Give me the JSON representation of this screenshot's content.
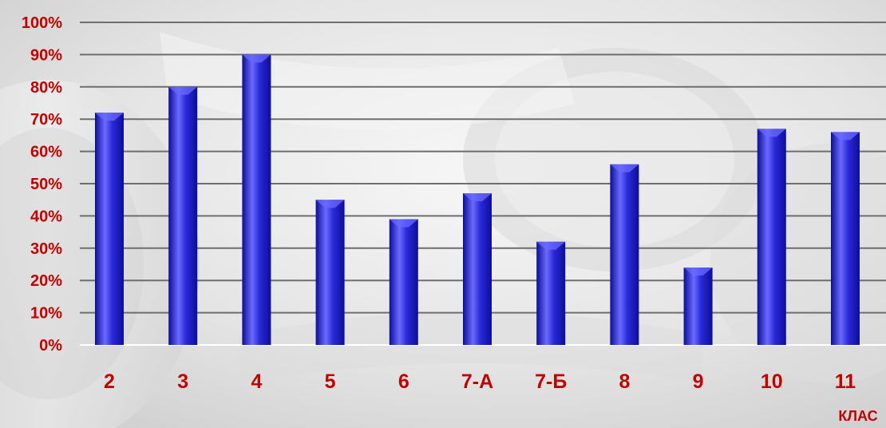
{
  "chart_data": {
    "type": "bar",
    "categories": [
      "2",
      "3",
      "4",
      "5",
      "6",
      "7-А",
      "7-Б",
      "8",
      "9",
      "10",
      "11"
    ],
    "values": [
      72,
      80,
      90,
      45,
      39,
      47,
      32,
      56,
      24,
      67,
      66
    ],
    "ylim": [
      0,
      100
    ],
    "yticks": [
      "0%",
      "10%",
      "20%",
      "30%",
      "40%",
      "50%",
      "60%",
      "70%",
      "80%",
      "90%",
      "100%"
    ],
    "xlabel": "КЛАС",
    "ylabel": "",
    "title": "",
    "grid": true,
    "legend": "none"
  },
  "colors": {
    "bar": "#2a2ad8",
    "bar_dark": "#0d0d9a",
    "bar_light": "#6a6aff",
    "label": "#c00000",
    "grid": "#6e6e6e"
  }
}
